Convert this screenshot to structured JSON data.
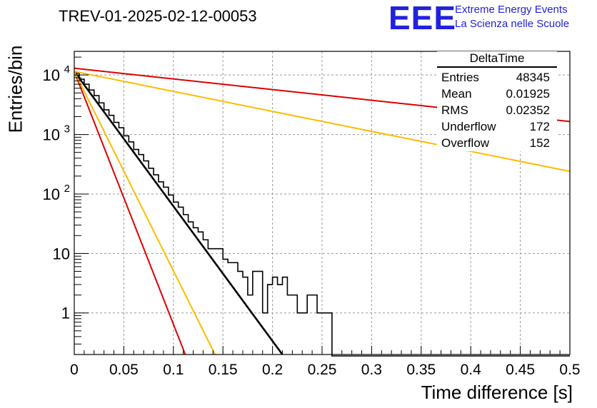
{
  "title": "TREV-01-2025-02-12-00053",
  "logo": {
    "mark": "EEE",
    "line1": "Extreme Energy Events",
    "line2": "La Scienza nelle Scuole"
  },
  "stats": {
    "title": "DeltaTime",
    "rows": [
      {
        "label": "Entries",
        "value": "48345"
      },
      {
        "label": "Mean",
        "value": "0.01925"
      },
      {
        "label": "RMS",
        "value": "0.02352"
      },
      {
        "label": "Underflow",
        "value": "172"
      },
      {
        "label": "Overflow",
        "value": "152"
      }
    ]
  },
  "colors": {
    "histogram": "#000000",
    "fit_black": "#000000",
    "fit_red": "#dd0000",
    "fit_orange": "#ffbb00",
    "logo": "#2222dd",
    "grid": "#999999"
  },
  "chart_data": {
    "type": "line",
    "title": "TREV-01-2025-02-12-00053",
    "xlabel": "Time difference [s]",
    "ylabel": "Entries/bin",
    "xlim": [
      0,
      0.5
    ],
    "ylim": [
      0.2,
      25000
    ],
    "yscale": "log",
    "grid": true,
    "x_ticks": [
      "0",
      "0.05",
      "0.1",
      "0.15",
      "0.2",
      "0.25",
      "0.3",
      "0.35",
      "0.4",
      "0.45",
      "0.5"
    ],
    "y_ticks": [
      {
        "value": 1,
        "label": "1"
      },
      {
        "value": 10,
        "label": "10"
      },
      {
        "value": 100,
        "label": "10",
        "exp": "2"
      },
      {
        "value": 1000,
        "label": "10",
        "exp": "3"
      },
      {
        "value": 10000,
        "label": "10",
        "exp": "4"
      }
    ],
    "histogram": {
      "bin_width": 0.005,
      "x_start": 0,
      "counts": [
        10800,
        8500,
        7000,
        5600,
        4500,
        3400,
        2600,
        2100,
        1600,
        1300,
        950,
        750,
        560,
        460,
        360,
        270,
        210,
        160,
        130,
        96,
        73,
        60,
        45,
        34,
        27,
        23,
        17,
        12,
        12,
        12,
        8,
        7,
        7,
        5,
        4,
        2,
        5,
        5,
        1,
        3,
        4,
        3,
        4,
        2,
        2,
        1,
        1,
        2,
        2,
        1,
        1,
        1,
        0.1,
        0.1,
        0.1,
        0.1,
        0.1,
        0.1,
        0.1,
        0.1,
        0.1,
        0.1,
        0.1,
        0.1,
        0.1,
        0.1,
        0.1,
        0.1,
        0.1,
        0.1,
        0.1,
        0.1,
        0.1,
        0.1,
        0.1,
        0.1,
        0.1,
        0.1,
        0.1,
        0.1,
        0.1,
        0.1,
        0.1,
        0.1,
        0.1,
        0.1,
        0.1,
        0.1,
        0.1,
        0.1,
        0.1,
        0.1,
        0.1,
        0.1,
        0.1,
        0.1,
        0.1,
        0.1,
        0.1,
        0.1
      ]
    },
    "series": [
      {
        "color": "black",
        "values": [
          [
            0.0,
            11500
          ],
          [
            0.21,
            0.2
          ]
        ]
      },
      {
        "color": "red",
        "values": [
          [
            0.0,
            13000
          ],
          [
            0.5,
            1650
          ]
        ]
      },
      {
        "color": "red",
        "values": [
          [
            0.0,
            11500
          ],
          [
            0.112,
            0.2
          ]
        ]
      },
      {
        "color": "orange",
        "values": [
          [
            0.0,
            11500
          ],
          [
            0.5,
            240
          ]
        ]
      },
      {
        "color": "orange",
        "values": [
          [
            0.0,
            11500
          ],
          [
            0.142,
            0.2
          ]
        ]
      }
    ]
  }
}
